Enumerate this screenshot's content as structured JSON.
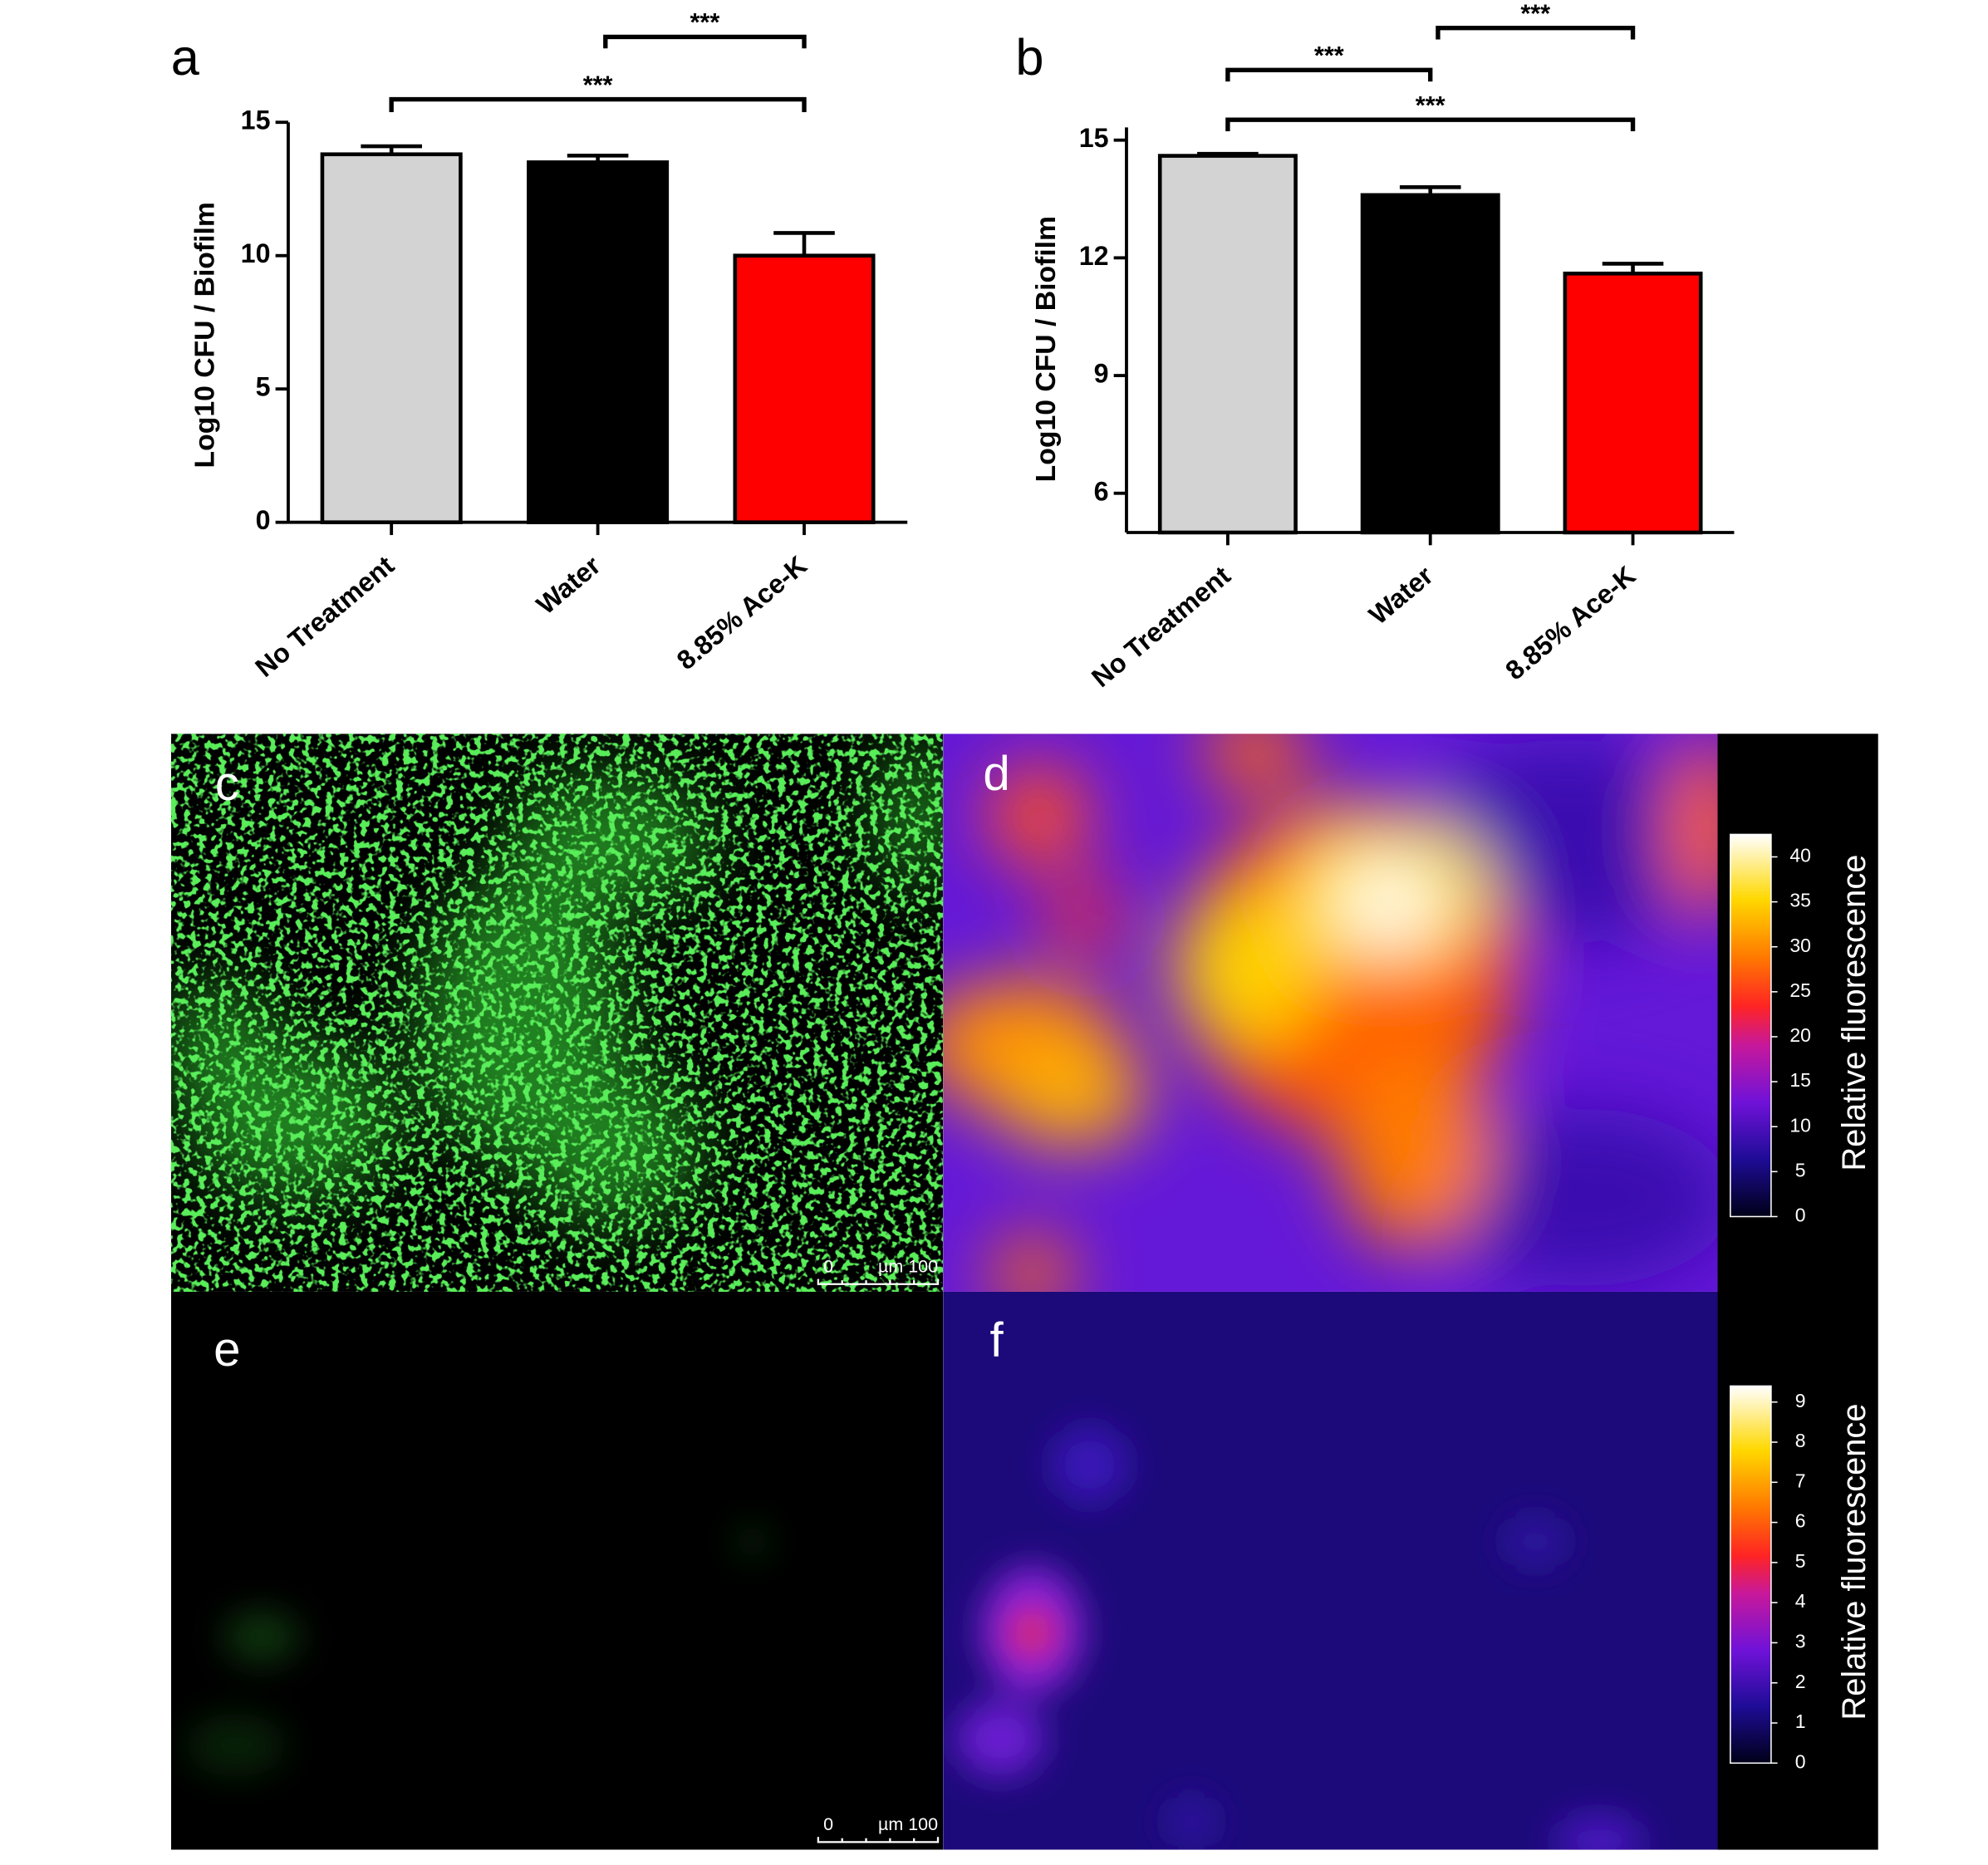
{
  "chart_data": [
    {
      "type": "bar",
      "panel_label": "a",
      "y_label": "Log10 CFU / Biofilm",
      "categories": [
        "No Treatment",
        "Water",
        "8.85% Ace-K"
      ],
      "values": [
        13.8,
        13.5,
        10.0
      ],
      "errors": [
        0.3,
        0.25,
        0.85
      ],
      "colors": [
        "#d3d3d3",
        "#000000",
        "#ff0000"
      ],
      "ylim": [
        0,
        15
      ],
      "yticks": [
        0,
        5,
        10,
        15
      ],
      "annotations": [
        "***",
        "***"
      ]
    },
    {
      "type": "bar",
      "panel_label": "b",
      "y_label": "Log10 CFU / Biofilm",
      "categories": [
        "No Treatment",
        "Water",
        "8.85% Ace-K"
      ],
      "values": [
        14.6,
        13.6,
        11.6
      ],
      "errors": [
        0.05,
        0.2,
        0.25
      ],
      "colors": [
        "#d3d3d3",
        "#000000",
        "#ff0000"
      ],
      "ylim": [
        5,
        15
      ],
      "yticks": [
        6,
        9,
        12,
        15
      ],
      "annotations": [
        "***",
        "***",
        "***"
      ]
    }
  ],
  "panels": [
    {
      "label": "c",
      "scale_bar": [
        "0",
        "µm 100"
      ]
    },
    {
      "label": "d",
      "colorbar": {
        "title": "Relative fluorescence",
        "lim": [
          0,
          42.5
        ],
        "ticks": [
          0,
          5,
          10,
          15,
          20,
          25,
          30,
          35,
          40
        ]
      }
    },
    {
      "label": "e",
      "scale_bar": [
        "0",
        "µm 100"
      ]
    },
    {
      "label": "f",
      "colorbar": {
        "title": "Relative fluorescence",
        "lim": [
          0,
          9.4
        ],
        "ticks": [
          0,
          1,
          2,
          3,
          4,
          5,
          6,
          7,
          8,
          9
        ]
      }
    }
  ]
}
